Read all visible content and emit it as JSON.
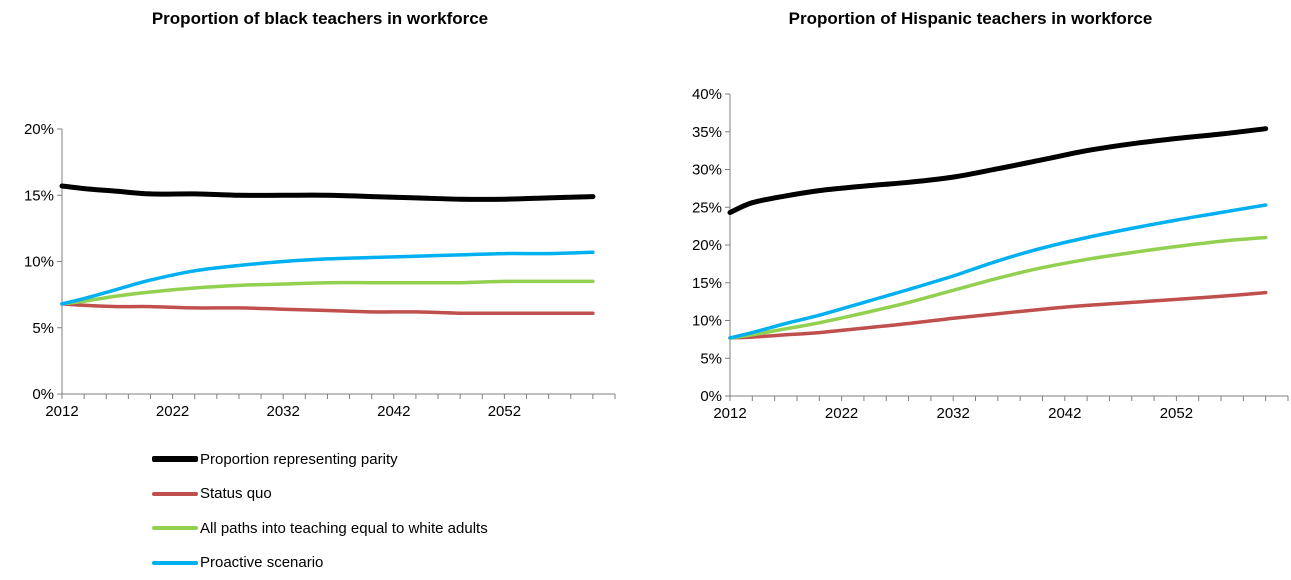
{
  "chart_data": [
    {
      "type": "line",
      "title": "Proportion of black teachers in workforce",
      "xlabel": "",
      "ylabel": "",
      "x": [
        2012,
        2014,
        2017,
        2020,
        2024,
        2028,
        2032,
        2036,
        2040,
        2044,
        2048,
        2052,
        2056,
        2060
      ],
      "xticks": [
        2012,
        2022,
        2032,
        2042,
        2052
      ],
      "xlim": [
        2012,
        2062
      ],
      "ylim": [
        0,
        0.2
      ],
      "yticks": [
        0,
        0.05,
        0.1,
        0.15,
        0.2
      ],
      "ytick_labels": [
        "0%",
        "5%",
        "10%",
        "15%",
        "20%"
      ],
      "grid": false,
      "series": [
        {
          "name": "Proportion representing parity",
          "color": "#000000",
          "values": [
            0.157,
            0.155,
            0.153,
            0.151,
            0.151,
            0.15,
            0.15,
            0.15,
            0.149,
            0.148,
            0.147,
            0.147,
            0.148,
            0.149
          ]
        },
        {
          "name": "Status quo",
          "color": "#c0504d",
          "values": [
            0.068,
            0.067,
            0.066,
            0.066,
            0.065,
            0.065,
            0.064,
            0.063,
            0.062,
            0.062,
            0.061,
            0.061,
            0.061,
            0.061
          ]
        },
        {
          "name": "All paths into teaching equal to white adults",
          "color": "#92d050",
          "values": [
            0.068,
            0.07,
            0.074,
            0.077,
            0.08,
            0.082,
            0.083,
            0.084,
            0.084,
            0.084,
            0.084,
            0.085,
            0.085,
            0.085
          ]
        },
        {
          "name": "Proactive scenario",
          "color": "#00b0f0",
          "values": [
            0.068,
            0.072,
            0.079,
            0.086,
            0.093,
            0.097,
            0.1,
            0.102,
            0.103,
            0.104,
            0.105,
            0.106,
            0.106,
            0.107
          ]
        }
      ]
    },
    {
      "type": "line",
      "title": "Proportion of Hispanic teachers in workforce",
      "xlabel": "",
      "ylabel": "",
      "x": [
        2012,
        2014,
        2017,
        2020,
        2024,
        2028,
        2032,
        2036,
        2040,
        2044,
        2048,
        2052,
        2056,
        2060
      ],
      "xticks": [
        2012,
        2022,
        2032,
        2042,
        2052
      ],
      "xlim": [
        2012,
        2062
      ],
      "ylim": [
        0,
        0.4
      ],
      "yticks": [
        0,
        0.05,
        0.1,
        0.15,
        0.2,
        0.25,
        0.3,
        0.35,
        0.4
      ],
      "ytick_labels": [
        "0%",
        "5%",
        "10%",
        "15%",
        "20%",
        "25%",
        "30%",
        "35%",
        "40%"
      ],
      "grid": false,
      "series": [
        {
          "name": "Proportion representing parity",
          "color": "#000000",
          "values": [
            0.243,
            0.256,
            0.265,
            0.272,
            0.278,
            0.283,
            0.29,
            0.301,
            0.313,
            0.325,
            0.334,
            0.341,
            0.347,
            0.354
          ]
        },
        {
          "name": "Status quo",
          "color": "#c0504d",
          "values": [
            0.077,
            0.078,
            0.081,
            0.084,
            0.09,
            0.096,
            0.103,
            0.109,
            0.115,
            0.12,
            0.124,
            0.128,
            0.132,
            0.137
          ]
        },
        {
          "name": "All paths into teaching equal to white adults",
          "color": "#92d050",
          "values": [
            0.077,
            0.081,
            0.089,
            0.097,
            0.11,
            0.124,
            0.14,
            0.156,
            0.17,
            0.181,
            0.19,
            0.198,
            0.205,
            0.21
          ]
        },
        {
          "name": "Proactive scenario",
          "color": "#00b0f0",
          "values": [
            0.077,
            0.084,
            0.096,
            0.107,
            0.124,
            0.141,
            0.159,
            0.179,
            0.196,
            0.21,
            0.222,
            0.233,
            0.243,
            0.253
          ]
        }
      ]
    }
  ],
  "legend": {
    "placement": "bottom-left",
    "items": [
      {
        "label": "Proportion representing parity",
        "color": "#000000"
      },
      {
        "label": "Status quo",
        "color": "#c0504d"
      },
      {
        "label": "All paths into teaching equal to white adults",
        "color": "#92d050"
      },
      {
        "label": "Proactive scenario",
        "color": "#00b0f0"
      }
    ]
  }
}
